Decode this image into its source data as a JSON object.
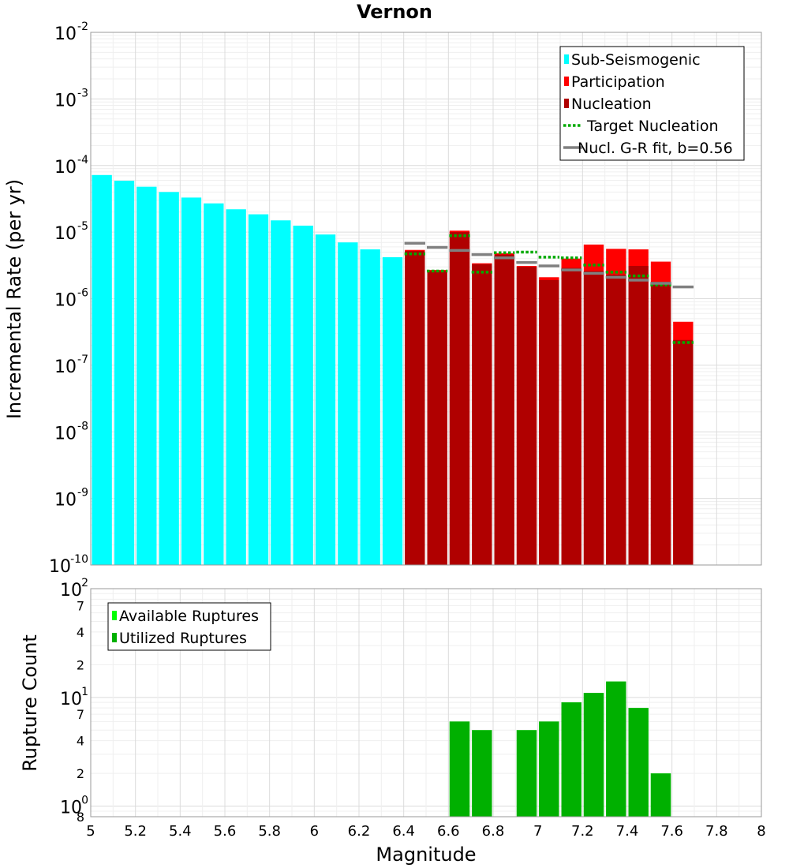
{
  "chart_data": [
    {
      "type": "bar",
      "title": "Vernon",
      "xlabel": "",
      "ylabel": "Incremental Rate (per yr)",
      "yscale": "log",
      "ylim": [
        1e-10,
        0.01
      ],
      "xlim": [
        5.0,
        8.0
      ],
      "bin_width": 0.1,
      "y_ticks": [
        {
          "base": "10",
          "exp": "-2"
        },
        {
          "base": "10",
          "exp": "-3"
        },
        {
          "base": "10",
          "exp": "-4"
        },
        {
          "base": "10",
          "exp": "-5"
        },
        {
          "base": "10",
          "exp": "-6"
        },
        {
          "base": "10",
          "exp": "-7"
        },
        {
          "base": "10",
          "exp": "-8"
        },
        {
          "base": "10",
          "exp": "-9"
        },
        {
          "base": "10",
          "exp": "-10"
        }
      ],
      "grid": true,
      "legend_position": "top-right",
      "series": [
        {
          "name": "Sub-Seismogenic",
          "color": "#00ffff",
          "style": "bar",
          "x": [
            5.05,
            5.15,
            5.25,
            5.35,
            5.45,
            5.55,
            5.65,
            5.75,
            5.85,
            5.95,
            6.05,
            6.15,
            6.25,
            6.35
          ],
          "values": [
            7.2e-05,
            5.9e-05,
            4.8e-05,
            4e-05,
            3.3e-05,
            2.7e-05,
            2.2e-05,
            1.85e-05,
            1.5e-05,
            1.25e-05,
            9.2e-06,
            7e-06,
            5.5e-06,
            4.2e-06
          ]
        },
        {
          "name": "Participation",
          "color": "#ff0000",
          "style": "bar",
          "x": [
            6.45,
            6.55,
            6.65,
            6.75,
            6.85,
            6.95,
            7.05,
            7.15,
            7.25,
            7.35,
            7.45,
            7.55,
            7.65
          ],
          "values": [
            5.4e-06,
            2.7e-06,
            1.05e-05,
            3.4e-06,
            4.8e-06,
            3.1e-06,
            2.1e-06,
            4e-06,
            6.5e-06,
            5.6e-06,
            5.5e-06,
            3.6e-06,
            4.5e-07
          ]
        },
        {
          "name": "Nucleation",
          "color": "#b00000",
          "style": "bar",
          "x": [
            6.45,
            6.55,
            6.65,
            6.75,
            6.85,
            6.95,
            7.05,
            7.15,
            7.25,
            7.35,
            7.45,
            7.55,
            7.65
          ],
          "values": [
            5.2e-06,
            2.6e-06,
            1e-05,
            3.3e-06,
            4.6e-06,
            3e-06,
            1.9e-06,
            2.9e-06,
            2.6e-06,
            2.3e-06,
            3.1e-06,
            1.8e-06,
            2.4e-07
          ]
        },
        {
          "name": "Target Nucleation",
          "color": "#00aa00",
          "style": "dotted-step",
          "x": [
            6.45,
            6.55,
            6.65,
            6.75,
            6.85,
            6.95,
            7.05,
            7.15,
            7.25,
            7.35,
            7.45,
            7.55,
            7.65
          ],
          "values": [
            4.7e-06,
            2.6e-06,
            8.8e-06,
            2.5e-06,
            4.9e-06,
            5e-06,
            4.2e-06,
            4.1e-06,
            3.2e-06,
            2.5e-06,
            2.2e-06,
            1.6e-06,
            2.2e-07
          ]
        },
        {
          "name": "Nucl. G-R fit, b=0.56",
          "color": "#808080",
          "style": "step",
          "x": [
            6.45,
            6.55,
            6.65,
            6.75,
            6.85,
            6.95,
            7.05,
            7.15,
            7.25,
            7.35,
            7.45,
            7.55,
            7.65
          ],
          "values": [
            6.8e-06,
            5.9e-06,
            5.3e-06,
            4.6e-06,
            4.1e-06,
            3.5e-06,
            3.1e-06,
            2.7e-06,
            2.4e-06,
            2.1e-06,
            1.9e-06,
            1.7e-06,
            1.5e-06
          ]
        }
      ]
    },
    {
      "type": "bar",
      "title": "",
      "xlabel": "Magnitude",
      "ylabel": "Rupture Count",
      "yscale": "log",
      "ylim": [
        0.8,
        100
      ],
      "xlim": [
        5.0,
        8.0
      ],
      "bin_width": 0.1,
      "x_ticks": [
        "5",
        "5.2",
        "5.4",
        "5.6",
        "5.8",
        "6",
        "6.2",
        "6.4",
        "6.6",
        "6.8",
        "7",
        "7.2",
        "7.4",
        "7.6",
        "7.8",
        "8"
      ],
      "y_ticks": [
        {
          "base": "10",
          "exp": "2",
          "value": 100
        },
        {
          "label": "7",
          "value": 70
        },
        {
          "label": "4",
          "value": 40
        },
        {
          "label": "2",
          "value": 20
        },
        {
          "base": "10",
          "exp": "1",
          "value": 10
        },
        {
          "label": "7",
          "value": 7
        },
        {
          "label": "4",
          "value": 4
        },
        {
          "label": "2",
          "value": 2
        },
        {
          "base": "10",
          "exp": "0",
          "value": 1
        },
        {
          "label": "8",
          "value": 0.8
        }
      ],
      "grid": true,
      "legend_position": "top-left",
      "series": [
        {
          "name": "Available Ruptures",
          "color": "#00ff00",
          "style": "bar",
          "x": [
            6.65,
            6.75,
            6.95,
            7.05,
            7.15,
            7.25,
            7.35,
            7.45,
            7.55
          ],
          "values": [
            6,
            5,
            5,
            6,
            9,
            11,
            14,
            8,
            2
          ]
        },
        {
          "name": "Utilized Ruptures",
          "color": "#00b000",
          "style": "bar",
          "x": [
            6.65,
            6.75,
            6.95,
            7.05,
            7.15,
            7.25,
            7.35,
            7.45,
            7.55
          ],
          "values": [
            6,
            5,
            5,
            6,
            9,
            11,
            14,
            8,
            2
          ]
        }
      ]
    }
  ]
}
